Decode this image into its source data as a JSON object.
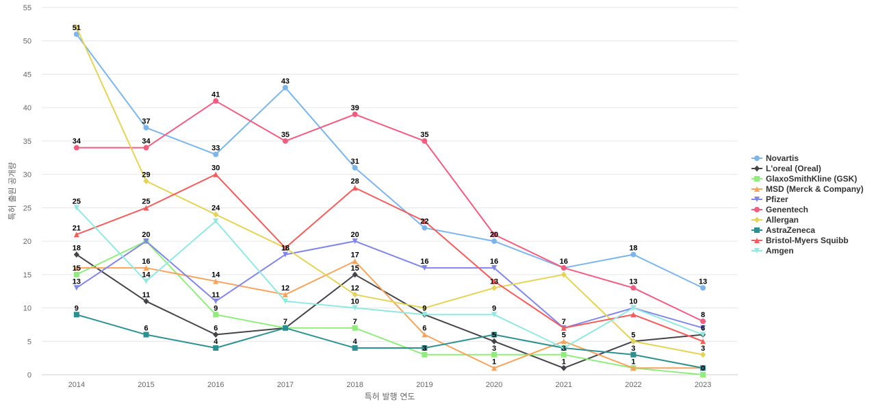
{
  "chart_data": {
    "type": "line",
    "title": "",
    "xlabel": "특허 발행 연도",
    "ylabel": "특허 출원 공개량",
    "categories": [
      "2014",
      "2015",
      "2016",
      "2017",
      "2018",
      "2019",
      "2020",
      "2021",
      "2022",
      "2023"
    ],
    "ylim": [
      0,
      55
    ],
    "yticks": [
      0,
      5,
      10,
      15,
      20,
      25,
      30,
      35,
      40,
      45,
      50,
      55
    ],
    "grid": "horizontal",
    "legend_position": "right",
    "series": [
      {
        "name": "Novartis",
        "color": "#7cb5ec",
        "marker": "circle",
        "values": [
          51,
          37,
          33,
          43,
          31,
          22,
          20,
          16,
          18,
          13
        ]
      },
      {
        "name": "L'oreal (Oreal)",
        "color": "#434348",
        "marker": "diamond",
        "values": [
          18,
          11,
          6,
          7,
          15,
          9,
          5,
          1,
          5,
          6
        ]
      },
      {
        "name": "GlaxoSmithKline (GSK)",
        "color": "#90ed7d",
        "marker": "square",
        "values": [
          15,
          20,
          9,
          7,
          7,
          3,
          3,
          3,
          1,
          0
        ]
      },
      {
        "name": "MSD (Merck & Company)",
        "color": "#f7a35c",
        "marker": "triangle",
        "values": [
          16,
          16,
          14,
          12,
          17,
          6,
          1,
          5,
          1,
          1
        ]
      },
      {
        "name": "Pfizer",
        "color": "#8085e9",
        "marker": "triangle-down",
        "values": [
          13,
          20,
          11,
          18,
          20,
          16,
          16,
          7,
          10,
          7
        ]
      },
      {
        "name": "Genentech",
        "color": "#f15c80",
        "marker": "circle",
        "values": [
          34,
          34,
          41,
          35,
          39,
          35,
          21,
          16,
          13,
          8
        ]
      },
      {
        "name": "Allergan",
        "color": "#e4d354",
        "marker": "diamond",
        "values": [
          52,
          29,
          24,
          19,
          12,
          10,
          13,
          15,
          5,
          3
        ]
      },
      {
        "name": "AstraZeneca",
        "color": "#2b908f",
        "marker": "square",
        "values": [
          9,
          6,
          4,
          7,
          4,
          4,
          6,
          4,
          3,
          1
        ]
      },
      {
        "name": "Bristol-Myers Squibb",
        "color": "#f45b5b",
        "marker": "triangle",
        "values": [
          21,
          25,
          30,
          19,
          28,
          23,
          14,
          7,
          9,
          5
        ]
      },
      {
        "name": "Amgen",
        "color": "#91e8e1",
        "marker": "triangle-down",
        "values": [
          25,
          14,
          23,
          11,
          10,
          9,
          9,
          4,
          10,
          6
        ]
      }
    ],
    "data_labels": [
      {
        "category": "2014",
        "value": 51,
        "text": "51"
      },
      {
        "category": "2014",
        "value": 34,
        "text": "34"
      },
      {
        "category": "2014",
        "value": 25,
        "text": "25"
      },
      {
        "category": "2014",
        "value": 21,
        "text": "21"
      },
      {
        "category": "2014",
        "value": 18,
        "text": "18"
      },
      {
        "category": "2014",
        "value": 15,
        "text": "15"
      },
      {
        "category": "2014",
        "value": 13,
        "text": "13"
      },
      {
        "category": "2014",
        "value": 9,
        "text": "9"
      },
      {
        "category": "2015",
        "value": 37,
        "text": "37"
      },
      {
        "category": "2015",
        "value": 34,
        "text": "34"
      },
      {
        "category": "2015",
        "value": 29,
        "text": "29"
      },
      {
        "category": "2015",
        "value": 25,
        "text": "25"
      },
      {
        "category": "2015",
        "value": 20,
        "text": "20"
      },
      {
        "category": "2015",
        "value": 16,
        "text": "16"
      },
      {
        "category": "2015",
        "value": 14,
        "text": "14"
      },
      {
        "category": "2015",
        "value": 11,
        "text": "11"
      },
      {
        "category": "2015",
        "value": 6,
        "text": "6"
      },
      {
        "category": "2016",
        "value": 41,
        "text": "41"
      },
      {
        "category": "2016",
        "value": 33,
        "text": "33"
      },
      {
        "category": "2016",
        "value": 30,
        "text": "30"
      },
      {
        "category": "2016",
        "value": 24,
        "text": "24"
      },
      {
        "category": "2016",
        "value": 14,
        "text": "14"
      },
      {
        "category": "2016",
        "value": 11,
        "text": "11"
      },
      {
        "category": "2016",
        "value": 9,
        "text": "9"
      },
      {
        "category": "2016",
        "value": 6,
        "text": "6"
      },
      {
        "category": "2016",
        "value": 4,
        "text": "4"
      },
      {
        "category": "2017",
        "value": 43,
        "text": "43"
      },
      {
        "category": "2017",
        "value": 35,
        "text": "35"
      },
      {
        "category": "2017",
        "value": 18,
        "text": "18"
      },
      {
        "category": "2017",
        "value": 12,
        "text": "12"
      },
      {
        "category": "2017",
        "value": 7,
        "text": "7"
      },
      {
        "category": "2018",
        "value": 39,
        "text": "39"
      },
      {
        "category": "2018",
        "value": 31,
        "text": "31"
      },
      {
        "category": "2018",
        "value": 28,
        "text": "28"
      },
      {
        "category": "2018",
        "value": 20,
        "text": "20"
      },
      {
        "category": "2018",
        "value": 17,
        "text": "17"
      },
      {
        "category": "2018",
        "value": 15,
        "text": "15"
      },
      {
        "category": "2018",
        "value": 12,
        "text": "12"
      },
      {
        "category": "2018",
        "value": 10,
        "text": "10"
      },
      {
        "category": "2018",
        "value": 7,
        "text": "7"
      },
      {
        "category": "2018",
        "value": 4,
        "text": "4"
      },
      {
        "category": "2019",
        "value": 35,
        "text": "35"
      },
      {
        "category": "2019",
        "value": 22,
        "text": "22"
      },
      {
        "category": "2019",
        "value": 16,
        "text": "16"
      },
      {
        "category": "2019",
        "value": 9,
        "text": "9"
      },
      {
        "category": "2019",
        "value": 6,
        "text": "6"
      },
      {
        "category": "2019",
        "value": 3,
        "text": "3"
      },
      {
        "category": "2020",
        "value": 20,
        "text": "20"
      },
      {
        "category": "2020",
        "value": 16,
        "text": "16"
      },
      {
        "category": "2020",
        "value": 13,
        "text": "13"
      },
      {
        "category": "2020",
        "value": 9,
        "text": "9"
      },
      {
        "category": "2020",
        "value": 5,
        "text": "5"
      },
      {
        "category": "2020",
        "value": 3,
        "text": "3"
      },
      {
        "category": "2020",
        "value": 1,
        "text": "1"
      },
      {
        "category": "2021",
        "value": 16,
        "text": "16"
      },
      {
        "category": "2021",
        "value": 7,
        "text": "7"
      },
      {
        "category": "2021",
        "value": 5,
        "text": "5"
      },
      {
        "category": "2021",
        "value": 3,
        "text": "3"
      },
      {
        "category": "2021",
        "value": 1,
        "text": "1"
      },
      {
        "category": "2022",
        "value": 18,
        "text": "18"
      },
      {
        "category": "2022",
        "value": 13,
        "text": "13"
      },
      {
        "category": "2022",
        "value": 10,
        "text": "10"
      },
      {
        "category": "2022",
        "value": 5,
        "text": "5"
      },
      {
        "category": "2022",
        "value": 3,
        "text": "3"
      },
      {
        "category": "2022",
        "value": 1,
        "text": "1"
      },
      {
        "category": "2023",
        "value": 13,
        "text": "13"
      },
      {
        "category": "2023",
        "value": 8,
        "text": "8"
      },
      {
        "category": "2023",
        "value": 6,
        "text": "6"
      },
      {
        "category": "2023",
        "value": 3,
        "text": "3"
      },
      {
        "category": "2023",
        "value": 0,
        "text": "0"
      }
    ]
  }
}
